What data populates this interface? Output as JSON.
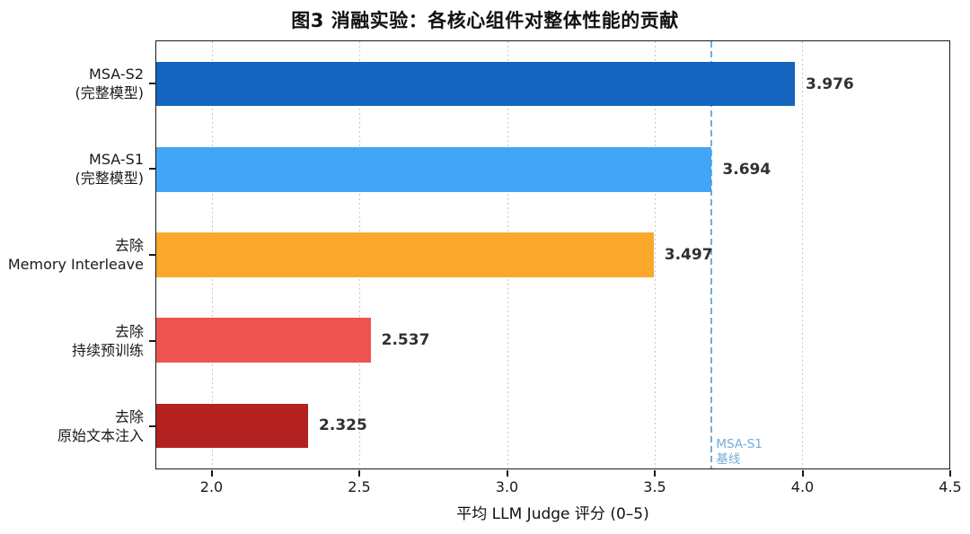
{
  "title": "图3 消融实验：各核心组件对整体性能的贡献",
  "chart_data": {
    "type": "bar",
    "orientation": "horizontal",
    "title": "图3 消融实验：各核心组件对整体性能的贡献",
    "xlabel": "平均 LLM Judge 评分 (0–5)",
    "xlim": [
      1.81,
      4.5
    ],
    "x_ticks": [
      2.0,
      2.5,
      3.0,
      3.5,
      4.0,
      4.5
    ],
    "x_tick_labels": [
      "2.0",
      "2.5",
      "3.0",
      "3.5",
      "4.0",
      "4.5"
    ],
    "grid": "vertical-dotted",
    "legend": "none",
    "bars": [
      {
        "label_line1": "MSA-S2",
        "label_line2": "(完整模型)",
        "value": 3.976,
        "value_label": "3.976",
        "color": "#1565C0"
      },
      {
        "label_line1": "MSA-S1",
        "label_line2": "(完整模型)",
        "value": 3.694,
        "value_label": "3.694",
        "color": "#42A5F5"
      },
      {
        "label_line1": "去除",
        "label_line2": "Memory Interleave",
        "value": 3.497,
        "value_label": "3.497",
        "color": "#FAA72B"
      },
      {
        "label_line1": "去除",
        "label_line2": "持续预训练",
        "value": 2.537,
        "value_label": "2.537",
        "color": "#EF5350"
      },
      {
        "label_line1": "去除",
        "label_line2": "原始文本注入",
        "value": 2.325,
        "value_label": "2.325",
        "color": "#B42121"
      }
    ],
    "reference_line": {
      "value": 3.694,
      "style": "dashed",
      "color": "#74ADD8",
      "label_line1": "MSA-S1",
      "label_line2": "基线"
    },
    "colors": {
      "spine": "#1a1a1a",
      "gridline": "#c8c8c8",
      "value_label_text": "#303030",
      "tick_text": "#1a1a1a"
    }
  }
}
